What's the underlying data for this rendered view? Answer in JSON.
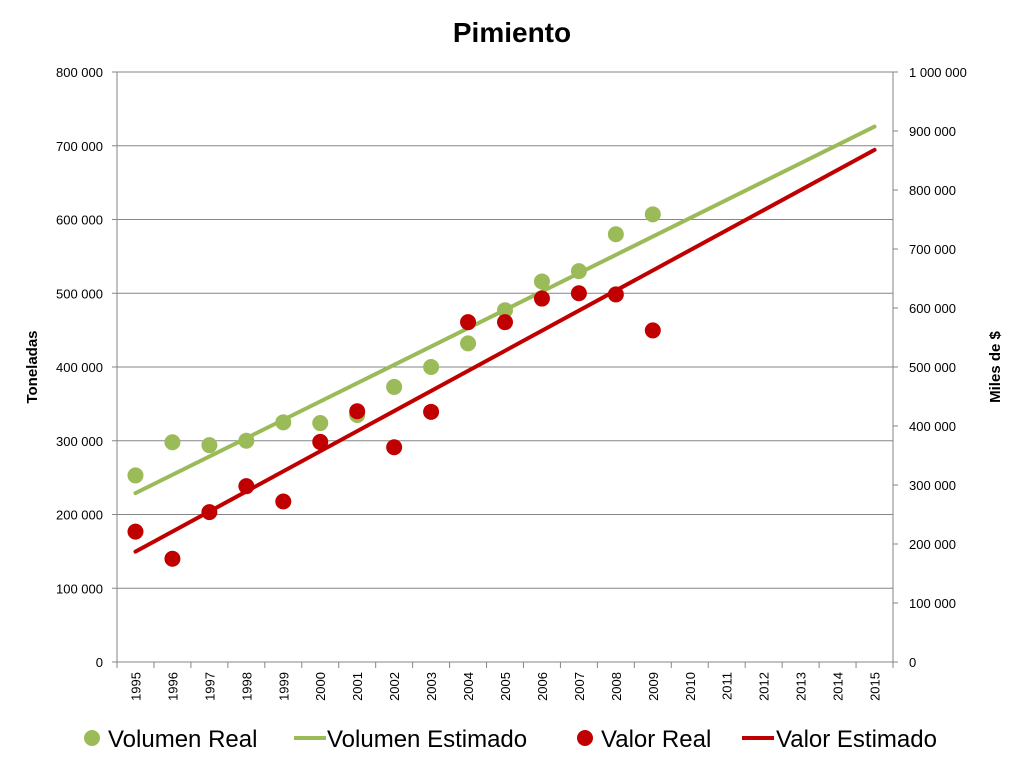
{
  "chart_data": {
    "type": "scatter",
    "title": "Pimiento",
    "xlabel": "",
    "ylabel_left": "Toneladas",
    "ylabel_right": "Miles de $",
    "categories": [
      "1995",
      "1996",
      "1997",
      "1998",
      "1999",
      "2000",
      "2001",
      "2002",
      "2003",
      "2004",
      "2005",
      "2006",
      "2007",
      "2008",
      "2009",
      "2010",
      "2011",
      "2012",
      "2013",
      "2014",
      "2015"
    ],
    "ylim_left": [
      0,
      800000
    ],
    "ylim_right": [
      0,
      1000000
    ],
    "yticks_left": [
      "0",
      "100 000",
      "200 000",
      "300 000",
      "400 000",
      "500 000",
      "600 000",
      "700 000",
      "800 000"
    ],
    "yticks_right": [
      "0",
      "100 000",
      "200 000",
      "300 000",
      "400 000",
      "500 000",
      "600 000",
      "700 000",
      "800 000",
      "900 000",
      "1 000 000"
    ],
    "grid": true,
    "legend_position": "bottom",
    "series": [
      {
        "name": "Volumen Real",
        "kind": "scatter",
        "axis": "left",
        "color": "#9BBB59",
        "values": [
          253000,
          298000,
          294000,
          300000,
          325000,
          324000,
          335000,
          373000,
          400000,
          432000,
          477000,
          516000,
          530000,
          580000,
          607000,
          null,
          null,
          null,
          null,
          null,
          null
        ]
      },
      {
        "name": "Volumen Estimado",
        "kind": "line",
        "axis": "left",
        "color": "#9BBB59",
        "values": [
          229000,
          null,
          null,
          null,
          null,
          null,
          null,
          null,
          null,
          null,
          null,
          null,
          null,
          null,
          null,
          null,
          null,
          null,
          null,
          null,
          726000
        ]
      },
      {
        "name": "Valor Real",
        "kind": "scatter",
        "axis": "right",
        "color": "#C00000",
        "values": [
          221000,
          175000,
          254000,
          298000,
          272000,
          373000,
          425000,
          364000,
          424000,
          576000,
          576000,
          616000,
          625000,
          623000,
          562000,
          null,
          null,
          null,
          null,
          null,
          null
        ]
      },
      {
        "name": "Valor Estimado",
        "kind": "line",
        "axis": "right",
        "color": "#C00000",
        "values": [
          187000,
          null,
          null,
          null,
          null,
          null,
          null,
          null,
          null,
          null,
          null,
          null,
          null,
          null,
          null,
          null,
          null,
          null,
          null,
          null,
          868000
        ]
      }
    ]
  }
}
